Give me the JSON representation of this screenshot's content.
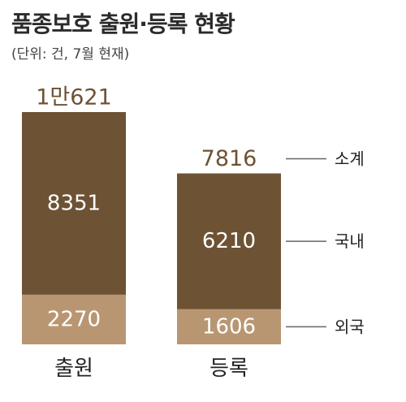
{
  "chart_data": {
    "type": "bar",
    "stacked": true,
    "title": "품종보호 출원·등록 현황",
    "subtitle": "(단위: 건, 7월 현재)",
    "categories": [
      "출원",
      "등록"
    ],
    "series": [
      {
        "name": "외국",
        "values": [
          2270,
          1606
        ],
        "color": "#b99672"
      },
      {
        "name": "국내",
        "values": [
          8351,
          6210
        ],
        "color": "#6d5234"
      }
    ],
    "totals": {
      "label": "소계",
      "display": [
        "1만621",
        "7816"
      ],
      "values": [
        10621,
        7816
      ]
    },
    "ylim": [
      0,
      10621
    ],
    "colors": {
      "total_text": "#6d5234",
      "bar_text": "#ffffff",
      "axis_text": "#222222",
      "leader_line": "#666666"
    }
  }
}
